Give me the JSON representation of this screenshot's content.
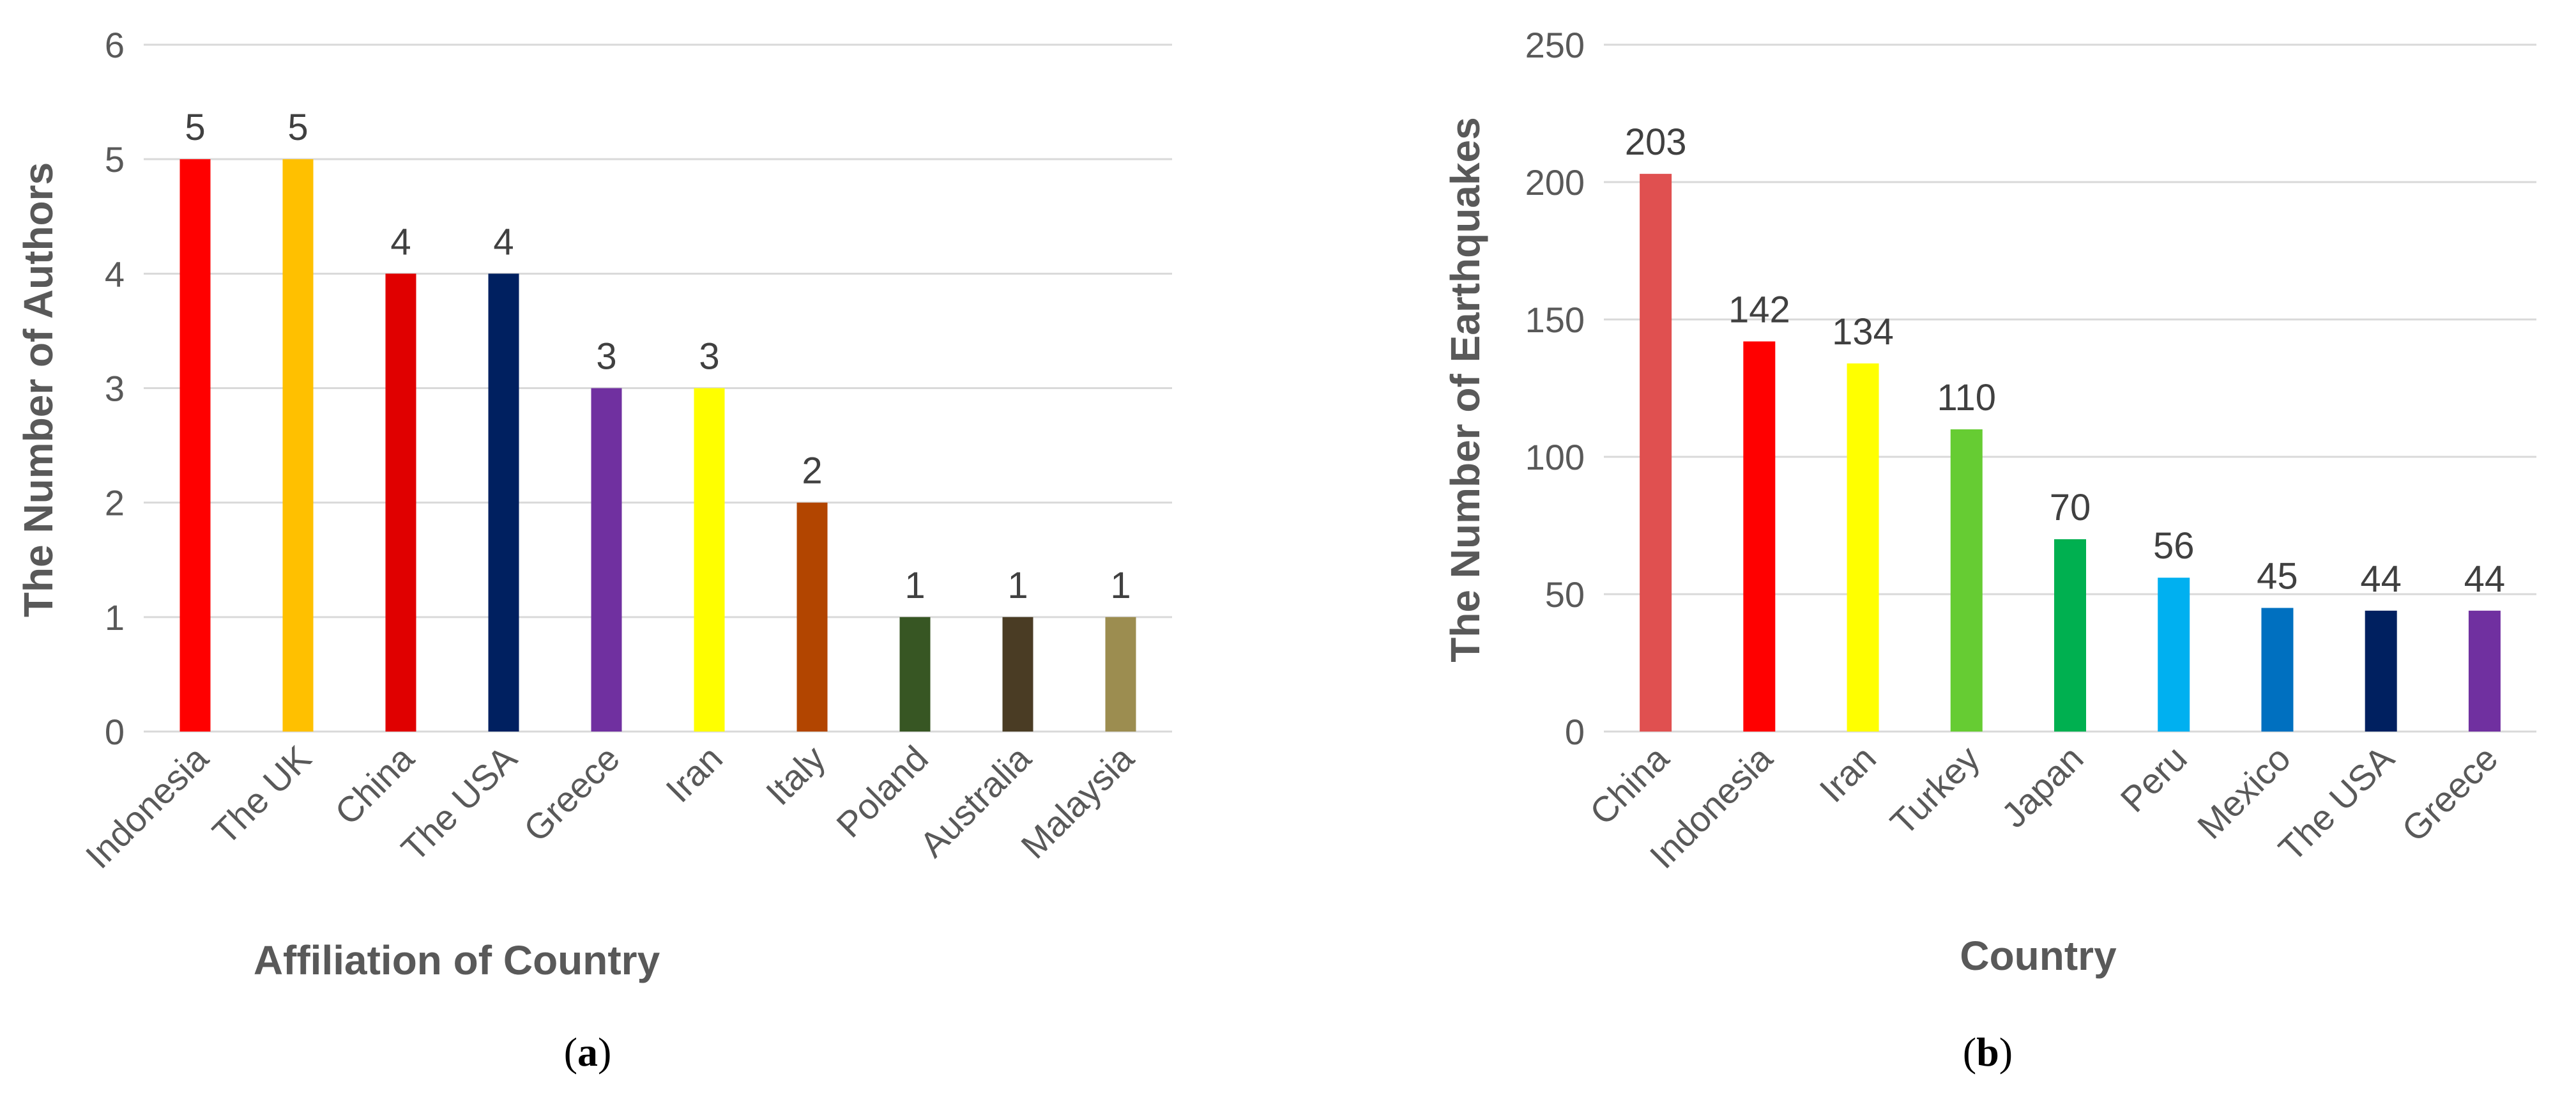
{
  "chart_data": [
    {
      "type": "bar",
      "panel_label": "a",
      "categories": [
        "Indonesia",
        "The UK",
        "China",
        "The USA",
        "Greece",
        "Iran",
        "Italy",
        "Poland",
        "Australia",
        "Malaysia"
      ],
      "values": [
        5,
        5,
        4,
        4,
        3,
        3,
        2,
        1,
        1,
        1
      ],
      "colors": [
        "#ff0000",
        "#ffc000",
        "#e00000",
        "#002060",
        "#7030a0",
        "#ffff00",
        "#b24500",
        "#375623",
        "#4a3c24",
        "#9c8d50"
      ],
      "xlabel": "Affiliation  of Country",
      "ylabel": "The Number of Authors",
      "yticks": [
        "0",
        "1",
        "2",
        "3",
        "4",
        "5",
        "6"
      ],
      "ylim": [
        0,
        6
      ],
      "grid": true,
      "data_labels": true
    },
    {
      "type": "bar",
      "panel_label": "b",
      "categories": [
        "China",
        "Indonesia",
        "Iran",
        "Turkey",
        "Japan",
        "Peru",
        "Mexico",
        "The USA",
        "Greece"
      ],
      "values": [
        203,
        142,
        134,
        110,
        70,
        56,
        45,
        44,
        44
      ],
      "colors": [
        "#e05050",
        "#ff0000",
        "#ffff00",
        "#66cc33",
        "#00b050",
        "#00b0f0",
        "#0070c0",
        "#002060",
        "#7030a0"
      ],
      "xlabel": "Country",
      "ylabel": "The Number of Earthquakes",
      "yticks": [
        "0",
        "50",
        "100",
        "150",
        "200",
        "250"
      ],
      "ylim": [
        0,
        250
      ],
      "grid": true,
      "data_labels": true
    }
  ]
}
